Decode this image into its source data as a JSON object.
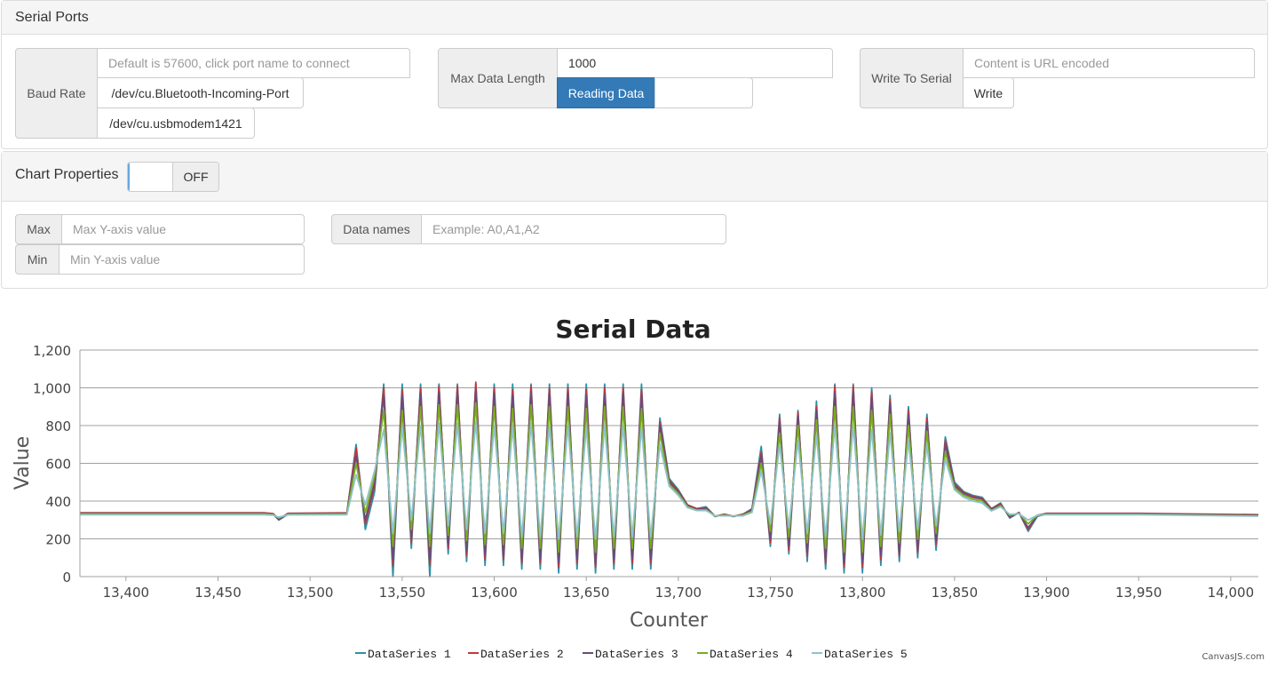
{
  "serial_ports": {
    "title": "Serial Ports",
    "baud_rate_label": "Baud Rate",
    "baud_placeholder": "Default is 57600, click port name to connect",
    "ports": [
      "/dev/cu.Bluetooth-Incoming-Port",
      "/dev/cu.usbmodem1421"
    ],
    "max_data_length_label": "Max Data Length",
    "max_data_length_value": "1000",
    "reading_button": "Reading Data",
    "write_to_serial_label": "Write To Serial",
    "write_placeholder": "Content is URL encoded",
    "write_button": "Write"
  },
  "chart_properties": {
    "title": "Chart Properties",
    "toggle_label": "OFF",
    "max_label": "Max",
    "max_placeholder": "Max Y-axis value",
    "min_label": "Min",
    "min_placeholder": "Min Y-axis value",
    "data_names_label": "Data names",
    "data_names_placeholder": "Example: A0,A1,A2"
  },
  "credit": "CanvasJS.com",
  "chart_data": {
    "type": "line",
    "title": "Serial Data",
    "xlabel": "Counter",
    "ylabel": "Value",
    "xlim": [
      13375,
      14015
    ],
    "ylim": [
      0,
      1200
    ],
    "xticks": [
      13400,
      13450,
      13500,
      13550,
      13600,
      13650,
      13700,
      13750,
      13800,
      13850,
      13900,
      13950,
      14000
    ],
    "yticks": [
      0,
      200,
      400,
      600,
      800,
      1000,
      1200
    ],
    "grid": true,
    "legend_position": "bottom",
    "x": [
      13375,
      13475,
      13480,
      13483,
      13488,
      13520,
      13525,
      13530,
      13535,
      13540,
      13545,
      13550,
      13555,
      13560,
      13565,
      13570,
      13575,
      13580,
      13585,
      13590,
      13595,
      13600,
      13605,
      13610,
      13615,
      13620,
      13625,
      13630,
      13635,
      13640,
      13645,
      13650,
      13655,
      13660,
      13665,
      13670,
      13675,
      13680,
      13685,
      13690,
      13695,
      13700,
      13705,
      13710,
      13715,
      13720,
      13725,
      13730,
      13735,
      13740,
      13745,
      13750,
      13755,
      13760,
      13765,
      13770,
      13775,
      13780,
      13785,
      13790,
      13795,
      13800,
      13805,
      13810,
      13815,
      13820,
      13825,
      13830,
      13835,
      13840,
      13845,
      13850,
      13855,
      13860,
      13865,
      13870,
      13875,
      13880,
      13885,
      13890,
      13895,
      13900,
      13950,
      14015
    ],
    "series": [
      {
        "name": "DataSeries 1",
        "color": "#2e8fa8",
        "values": [
          335,
          335,
          330,
          300,
          330,
          335,
          700,
          250,
          450,
          1020,
          0,
          1020,
          150,
          1020,
          0,
          1020,
          120,
          1020,
          80,
          1020,
          60,
          1020,
          60,
          1020,
          40,
          1020,
          40,
          1020,
          20,
          1020,
          40,
          1020,
          20,
          1020,
          40,
          1020,
          40,
          1020,
          40,
          840,
          520,
          460,
          380,
          360,
          370,
          320,
          330,
          320,
          330,
          360,
          690,
          160,
          860,
          120,
          880,
          80,
          930,
          40,
          1020,
          20,
          1020,
          20,
          1000,
          60,
          960,
          80,
          900,
          100,
          860,
          140,
          740,
          500,
          450,
          430,
          420,
          360,
          390,
          310,
          340,
          240,
          320,
          330,
          330,
          325
        ]
      },
      {
        "name": "DataSeries 2",
        "color": "#c0393b",
        "values": [
          338,
          338,
          333,
          305,
          335,
          338,
          680,
          280,
          480,
          1000,
          60,
          990,
          180,
          1000,
          60,
          1010,
          150,
          1010,
          110,
          1030,
          90,
          1000,
          90,
          990,
          70,
          1010,
          70,
          1000,
          50,
          1000,
          70,
          990,
          50,
          1000,
          70,
          1000,
          70,
          990,
          70,
          820,
          510,
          455,
          380,
          360,
          365,
          320,
          330,
          320,
          330,
          355,
          660,
          180,
          840,
          140,
          870,
          110,
          900,
          70,
          1010,
          50,
          1010,
          50,
          980,
          90,
          940,
          110,
          880,
          130,
          840,
          170,
          720,
          490,
          445,
          425,
          415,
          360,
          385,
          315,
          340,
          250,
          325,
          335,
          335,
          328
        ]
      },
      {
        "name": "DataSeries 3",
        "color": "#6b4a7a",
        "values": [
          335,
          335,
          330,
          302,
          332,
          335,
          640,
          300,
          500,
          960,
          90,
          960,
          200,
          970,
          90,
          980,
          170,
          980,
          130,
          990,
          110,
          970,
          110,
          960,
          90,
          980,
          90,
          970,
          70,
          970,
          90,
          960,
          70,
          970,
          90,
          970,
          90,
          960,
          90,
          800,
          500,
          450,
          375,
          355,
          360,
          318,
          328,
          318,
          328,
          350,
          640,
          200,
          820,
          160,
          850,
          130,
          880,
          90,
          980,
          70,
          980,
          70,
          950,
          110,
          920,
          130,
          860,
          150,
          820,
          190,
          700,
          480,
          440,
          420,
          410,
          355,
          380,
          318,
          338,
          260,
          322,
          332,
          332,
          325
        ]
      },
      {
        "name": "DataSeries 4",
        "color": "#7aac1e",
        "values": [
          332,
          332,
          328,
          310,
          330,
          332,
          600,
          340,
          530,
          880,
          160,
          880,
          250,
          900,
          160,
          910,
          220,
          910,
          190,
          920,
          170,
          900,
          170,
          890,
          150,
          910,
          150,
          900,
          130,
          900,
          150,
          890,
          130,
          900,
          150,
          900,
          150,
          890,
          150,
          760,
          490,
          440,
          370,
          352,
          355,
          320,
          325,
          320,
          325,
          345,
          600,
          240,
          760,
          210,
          800,
          180,
          830,
          150,
          900,
          130,
          900,
          130,
          880,
          160,
          860,
          180,
          800,
          200,
          770,
          230,
          660,
          470,
          430,
          410,
          400,
          350,
          375,
          325,
          335,
          280,
          325,
          330,
          330,
          322
        ]
      },
      {
        "name": "DataSeries 5",
        "color": "#8ec3cc",
        "values": [
          328,
          328,
          325,
          315,
          327,
          328,
          540,
          380,
          560,
          780,
          230,
          790,
          300,
          800,
          230,
          810,
          270,
          810,
          250,
          820,
          230,
          800,
          230,
          790,
          210,
          810,
          210,
          800,
          200,
          800,
          210,
          790,
          200,
          800,
          210,
          800,
          210,
          790,
          210,
          700,
          480,
          430,
          365,
          350,
          350,
          322,
          322,
          322,
          322,
          340,
          560,
          280,
          700,
          260,
          720,
          230,
          750,
          210,
          800,
          200,
          800,
          200,
          780,
          220,
          760,
          240,
          720,
          250,
          700,
          270,
          620,
          460,
          420,
          400,
          390,
          348,
          370,
          330,
          332,
          300,
          325,
          328,
          328,
          320
        ]
      }
    ]
  }
}
